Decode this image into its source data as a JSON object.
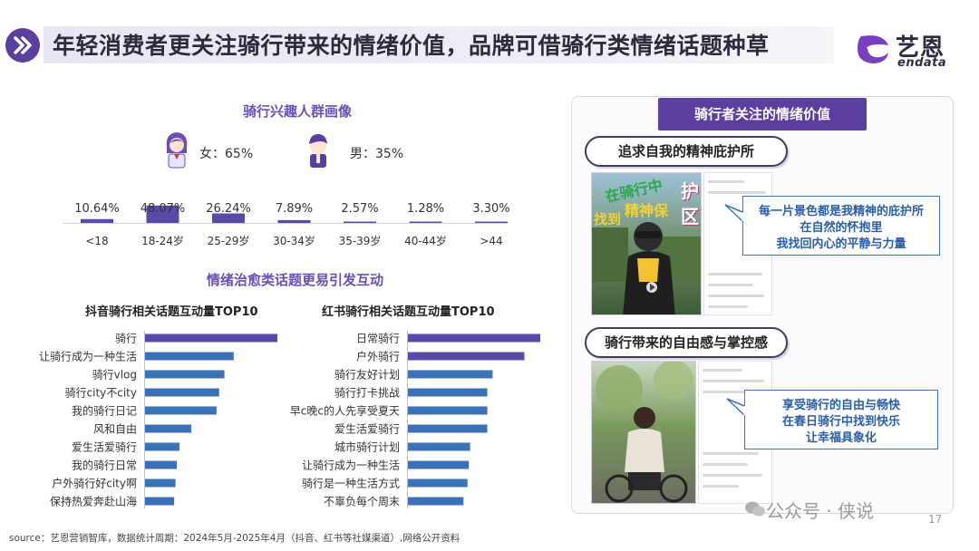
{
  "title": "年轻消费者更关注骑行带来的情绪价值，品牌可借骑行类情绪话题种草",
  "logo": {
    "cn": "艺恩",
    "en": "endata"
  },
  "left": {
    "section1_title": "骑行兴趣人群画像",
    "female_label": "女：65%",
    "male_label": "男：35%",
    "section2_title": "情绪治愈类话题更易引发互动",
    "douyin_title": "抖音骑行相关话题互动量TOP10",
    "xhs_title": "红书骑行相关话题互动量TOP10"
  },
  "right": {
    "panel_title": "骑行者关注的情绪价值",
    "pill1": "追求自我的精神庇护所",
    "pill2": "骑行带来的自由感与掌控感",
    "callout1": [
      "每一片景色都是我精神的庇护所",
      "在自然的怀抱里",
      "我找回内心的平静与力量"
    ],
    "callout2": [
      "享受骑行的自由与畅快",
      "在春日骑行中找到快乐",
      "让幸福具象化"
    ],
    "photo1_text": [
      "在骑行中",
      "找到",
      "精神保",
      "护",
      "区"
    ]
  },
  "source": "source：艺恩营销智库，数据统计周期：2024年5月-2025年4月（抖音、红书等社媒渠道）,网络公开资料",
  "watermark": "公众号 · 侠说",
  "page_number": "17",
  "colors": {
    "purple": "#5a3f9e",
    "blue": "#3e72b8",
    "bar_purple": "#5a4aa6"
  },
  "chart_data": [
    {
      "type": "bar",
      "title": "",
      "categories": [
        "<18",
        "18-24岁",
        "25-29岁",
        "30-34岁",
        "35-39岁",
        "40-44岁",
        ">44"
      ],
      "values": [
        10.64,
        48.07,
        26.24,
        7.89,
        2.57,
        1.28,
        3.3
      ],
      "value_labels": [
        "10.64%",
        "48.07%",
        "26.24%",
        "7.89%",
        "2.57%",
        "1.28%",
        "3.30%"
      ],
      "ylim": [
        0,
        50
      ]
    },
    {
      "type": "bar",
      "orientation": "horizontal",
      "title": "抖音骑行相关话题互动量TOP10",
      "categories": [
        "骑行",
        "让骑行成为一种生活",
        "骑行vlog",
        "骑行city不city",
        "我的骑行日记",
        "风和自由",
        "爱生活爱骑行",
        "我的骑行日常",
        "户外骑行好city啊",
        "保持热爱奔赴山海"
      ],
      "values": [
        100,
        67,
        60,
        56,
        54,
        35,
        26,
        24,
        23,
        22
      ],
      "highlight": [
        0
      ]
    },
    {
      "type": "bar",
      "orientation": "horizontal",
      "title": "红书骑行相关话题互动量TOP10",
      "categories": [
        "日常骑行",
        "户外骑行",
        "骑行友好计划",
        "骑行打卡挑战",
        "早c晚c的人先享受夏天",
        "爱生活爱骑行",
        "城市骑行计划",
        "让骑行成为一种生活",
        "骑行是一种生活方式",
        "不辜负每个周末"
      ],
      "values": [
        100,
        88,
        64,
        60,
        60,
        60,
        47,
        46,
        45,
        42
      ],
      "highlight": [
        0,
        1
      ]
    }
  ]
}
